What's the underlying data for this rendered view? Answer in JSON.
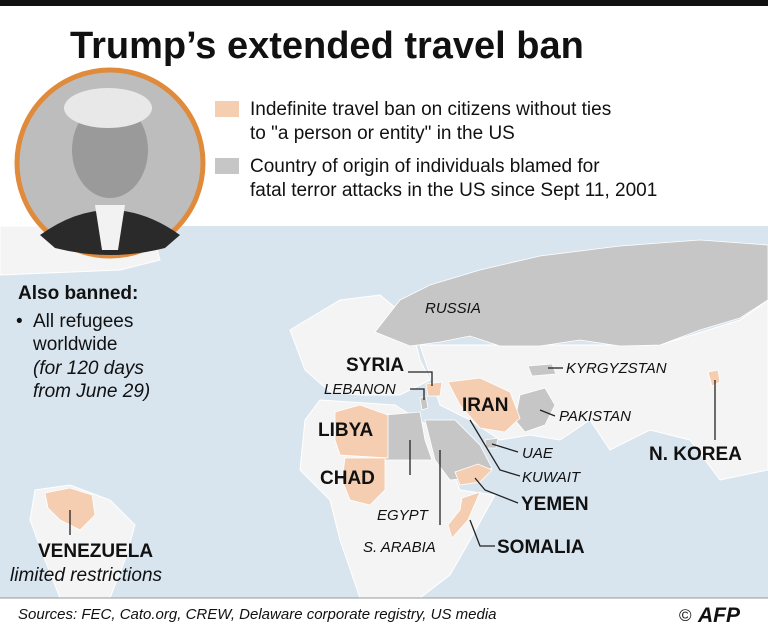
{
  "title": "Trump’s extended travel ban",
  "legend": [
    {
      "lines": [
        "Indefinite travel ban on citizens without ties",
        "to \"a person or entity\" in the US"
      ]
    },
    {
      "lines": [
        "Country of origin of individuals blamed for",
        "fatal terror attacks in the US since Sept 11, 2001"
      ]
    }
  ],
  "also_banned": {
    "heading": "Also banned:",
    "bullet": "•",
    "item_lines": [
      "All refugees",
      "worldwide"
    ],
    "note_lines": [
      "(for 120 days",
      "from June 29)"
    ]
  },
  "banned_countries": [
    "SYRIA",
    "IRAN",
    "LIBYA",
    "CHAD",
    "YEMEN",
    "SOMALIA",
    "N. KOREA",
    "VENEZUELA"
  ],
  "venezuela_note": "limited restrictions",
  "other_countries": [
    "RUSSIA",
    "LEBANON",
    "KYRGYZSTAN",
    "PAKISTAN",
    "UAE",
    "KUWAIT",
    "EGYPT",
    "S. ARABIA"
  ],
  "sources": "Sources: FEC, Cato.org, CREW, Delaware corporate registry, US media",
  "credit": {
    "symbol": "©",
    "agency": "AFP"
  }
}
